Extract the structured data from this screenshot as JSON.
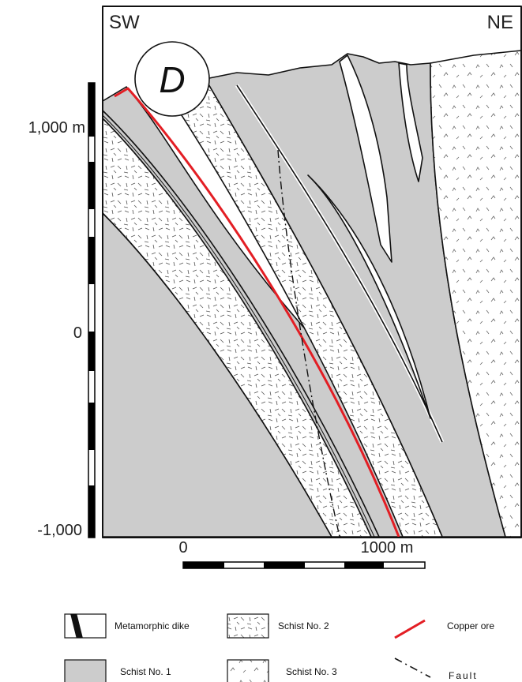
{
  "header": {
    "left": "SW",
    "right": "NE",
    "panel": "D"
  },
  "vertical_scale": {
    "labels": [
      "1,000 m",
      "0",
      "-1,000"
    ]
  },
  "horizontal_scale": {
    "labels": [
      "0",
      "1000 m"
    ]
  },
  "legend": {
    "items": [
      "Metamorphic dike",
      "Schist No. 1",
      "Schist No. 2",
      "Schist No. 3",
      "Copper ore",
      "Fault"
    ]
  }
}
